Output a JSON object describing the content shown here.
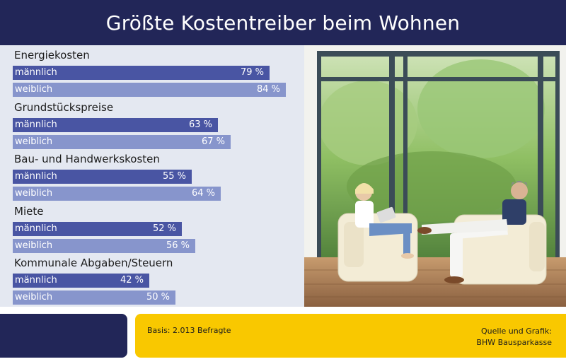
{
  "header": {
    "title": "Größte Kostentreiber beim Wohnen"
  },
  "footer": {
    "basis": "Basis: 2.013 Befragte",
    "source_line1": "Quelle und Grafik:",
    "source_line2": "BHW Bausparkasse"
  },
  "colors": {
    "header_bg": "#222658",
    "panel_bg": "#e4e8f1",
    "male_bar": "#4955a3",
    "female_bar": "#8795cc",
    "footer_accent": "#f9c800"
  },
  "chart_data": {
    "type": "bar",
    "orientation": "horizontal",
    "title": "Größte Kostentreiber beim Wohnen",
    "unit": "%",
    "categories": [
      "Energiekosten",
      "Grundstückspreise",
      "Bau- und Handwerkskosten",
      "Miete",
      "Kommunale Abgaben/Steuern"
    ],
    "series": [
      {
        "name": "männlich",
        "values": [
          79,
          63,
          55,
          52,
          42
        ],
        "labels": [
          "79 %",
          "63 %",
          "55 %",
          "52 %",
          "42 %"
        ]
      },
      {
        "name": "weiblich",
        "values": [
          84,
          67,
          64,
          56,
          50
        ],
        "labels": [
          "84 %",
          "67 %",
          "64 %",
          "56 %",
          "50 %"
        ]
      }
    ]
  }
}
